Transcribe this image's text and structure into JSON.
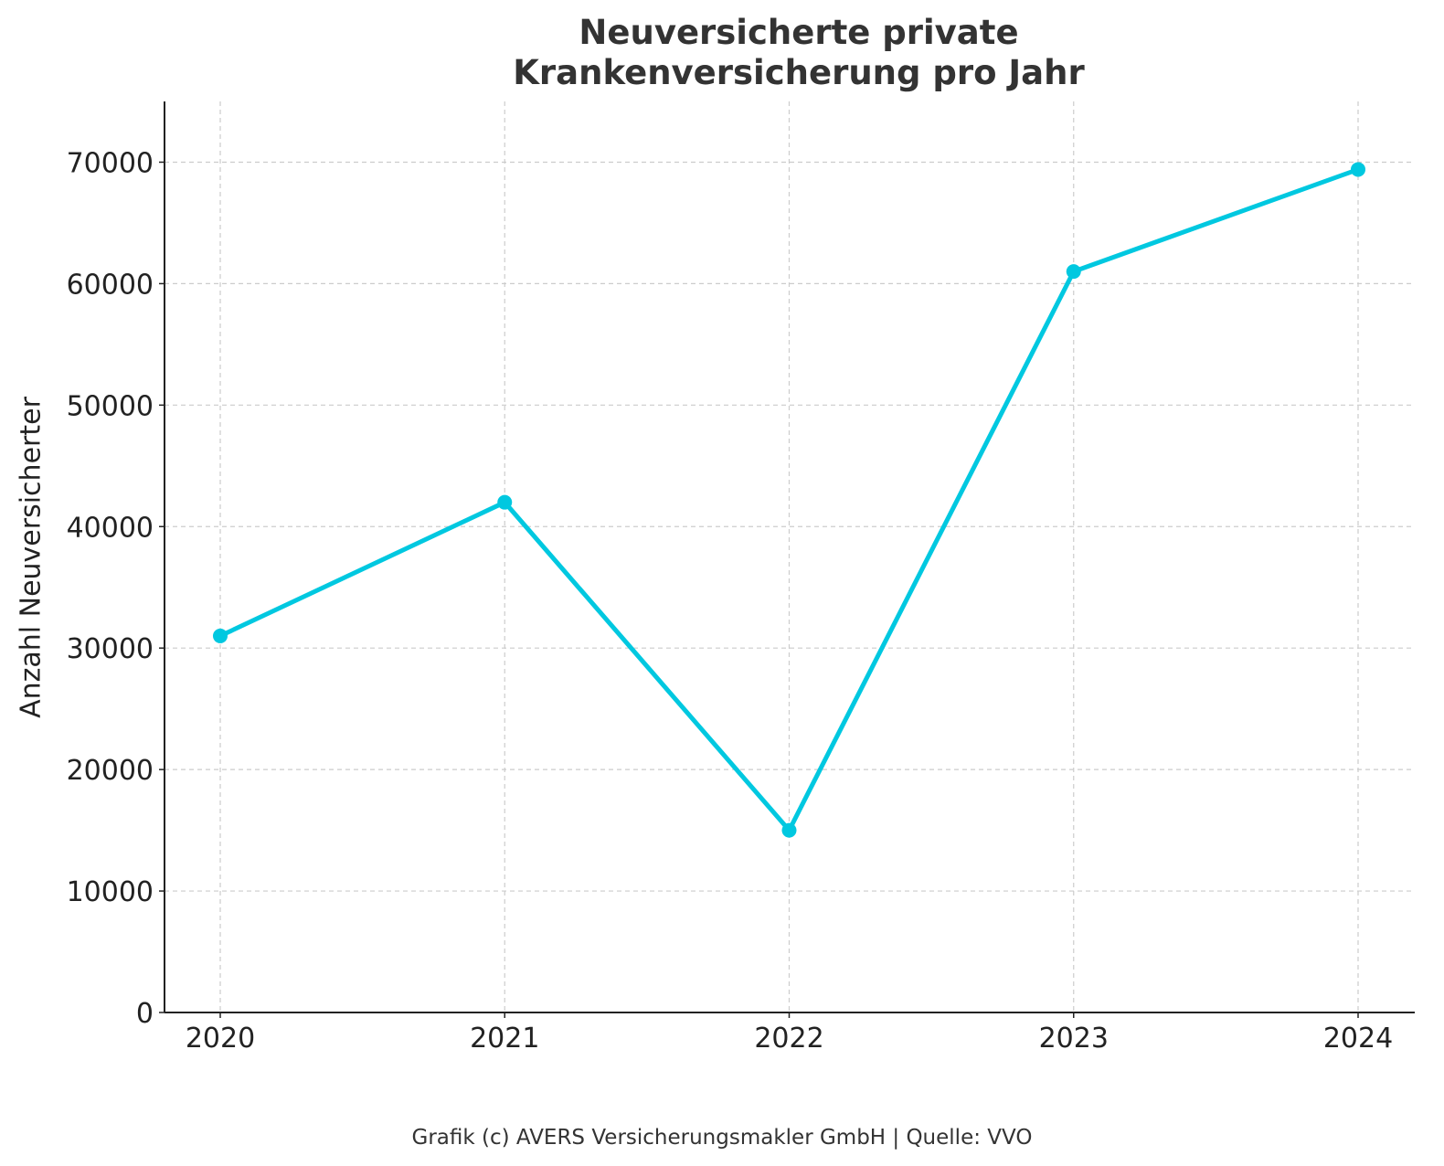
{
  "chart_data": {
    "type": "line",
    "title_lines": [
      "Neuversicherte private",
      "Krankenversicherung pro Jahr"
    ],
    "xlabel": "",
    "ylabel": "Anzahl Neuversicherter",
    "categories": [
      "2020",
      "2021",
      "2022",
      "2023",
      "2024"
    ],
    "series": [
      {
        "values": [
          31000,
          42000,
          15000,
          61000,
          69400
        ]
      }
    ],
    "ylim": [
      0,
      75000
    ],
    "yticks": [
      0,
      10000,
      20000,
      30000,
      40000,
      50000,
      60000,
      70000
    ],
    "grid": true,
    "line_color": "#00c8e0",
    "footer": "Grafik (c) AVERS Versicherungsmakler GmbH | Quelle: VVO"
  }
}
